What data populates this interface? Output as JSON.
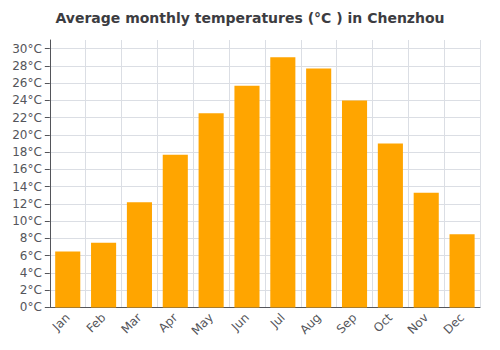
{
  "chart_data": {
    "type": "bar",
    "title": "Average monthly temperatures (°C ) in Chenzhou",
    "categories": [
      "Jan",
      "Feb",
      "Mar",
      "Apr",
      "May",
      "Jun",
      "Jul",
      "Aug",
      "Sep",
      "Oct",
      "Nov",
      "Dec"
    ],
    "values": [
      6.5,
      7.5,
      12.2,
      17.7,
      22.5,
      25.7,
      29.0,
      27.7,
      24.0,
      19.0,
      13.3,
      8.5
    ],
    "color": "#FFA500",
    "ylim": [
      0,
      31
    ],
    "yticks": [
      {
        "value": 0,
        "label": "0°C"
      },
      {
        "value": 2,
        "label": "2°C"
      },
      {
        "value": 4,
        "label": "4°C"
      },
      {
        "value": 6,
        "label": "6°C"
      },
      {
        "value": 8,
        "label": "8°C"
      },
      {
        "value": 10,
        "label": "10°C"
      },
      {
        "value": 12,
        "label": "12°C"
      },
      {
        "value": 14,
        "label": "14°C"
      },
      {
        "value": 16,
        "label": "16°C"
      },
      {
        "value": 18,
        "label": "18°C"
      },
      {
        "value": 20,
        "label": "20°C"
      },
      {
        "value": 22,
        "label": "22°C"
      },
      {
        "value": 24,
        "label": "24°C"
      },
      {
        "value": 26,
        "label": "26°C"
      },
      {
        "value": 28,
        "label": "28°C"
      },
      {
        "value": 30,
        "label": "30°C"
      }
    ],
    "grid": true
  }
}
